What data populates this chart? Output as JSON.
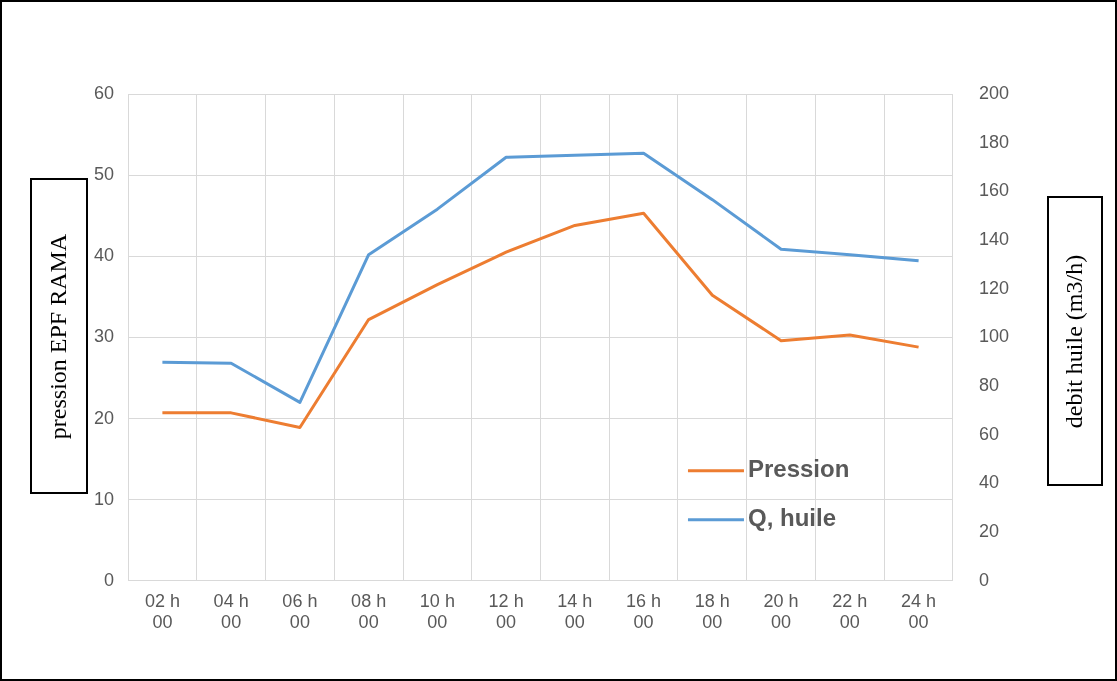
{
  "chart_data": {
    "type": "line",
    "categories": [
      "02 h 00",
      "04 h 00",
      "06 h 00",
      "08 h 00",
      "10 h 00",
      "12 h 00",
      "14 h 00",
      "16 h 00",
      "18 h 00",
      "20 h 00",
      "22 h 00",
      "24 h 00"
    ],
    "series": [
      {
        "name": "Pression",
        "color": "#ed7d31",
        "values": [
          20.7,
          20.7,
          18.9,
          32.2,
          36.5,
          40.5,
          43.8,
          45.3,
          35.2,
          29.6,
          30.3,
          28.8
        ]
      },
      {
        "name": "Q, huile",
        "color": "#5b9bd5",
        "axis": "y2",
        "values": [
          89.8,
          89.4,
          73.3,
          134,
          152.7,
          174,
          174.8,
          175.7,
          156.6,
          136.2,
          134,
          131.5
        ]
      }
    ],
    "ylabel": "pression EPF RAMA",
    "y2label": "debit  huile (m3/h)",
    "ylim": [
      0,
      60
    ],
    "yticks": [
      0,
      10,
      20,
      30,
      40,
      50,
      60
    ],
    "y2lim": [
      0,
      200
    ],
    "y2ticks": [
      0,
      20,
      40,
      60,
      80,
      100,
      120,
      140,
      160,
      180,
      200
    ],
    "grid": true,
    "legend": "bottom right",
    "marker": "none"
  }
}
